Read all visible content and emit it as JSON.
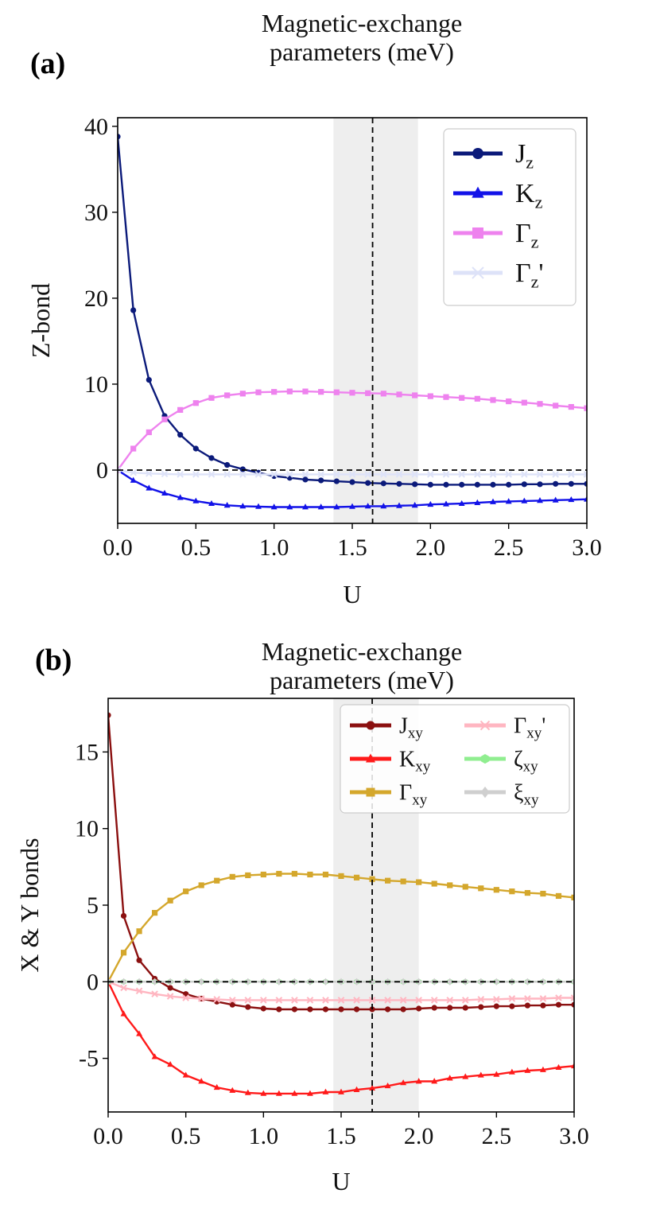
{
  "chart_data": [
    {
      "type": "line",
      "panel_label": "(a)",
      "title": [
        "Magnetic-exchange",
        "parameters (meV)"
      ],
      "xlabel": "U",
      "ylabel": "Z-bond",
      "xlim": [
        0.0,
        3.0
      ],
      "ylim": [
        -6.2,
        41.0
      ],
      "xticks": [
        "0.0",
        "0.5",
        "1.0",
        "1.5",
        "2.0",
        "2.5",
        "3.0"
      ],
      "yticks": [
        "0",
        "10",
        "20",
        "30",
        "40"
      ],
      "shaded_region": [
        1.38,
        1.92
      ],
      "vline": 1.63,
      "hline": 0,
      "legend_position": "top-right",
      "x": [
        0.0,
        0.1,
        0.2,
        0.3,
        0.4,
        0.5,
        0.6,
        0.7,
        0.8,
        0.9,
        1.0,
        1.1,
        1.2,
        1.3,
        1.4,
        1.5,
        1.6,
        1.7,
        1.8,
        1.9,
        2.0,
        2.1,
        2.2,
        2.3,
        2.4,
        2.5,
        2.6,
        2.7,
        2.8,
        2.9,
        3.0
      ],
      "series": [
        {
          "name": "J",
          "sub": "z",
          "prime": false,
          "color": "#0b1a7a",
          "marker": "circle",
          "values": [
            38.8,
            18.6,
            10.5,
            6.3,
            4.1,
            2.5,
            1.4,
            0.6,
            0.1,
            -0.3,
            -0.7,
            -0.9,
            -1.1,
            -1.2,
            -1.3,
            -1.4,
            -1.5,
            -1.55,
            -1.6,
            -1.65,
            -1.7,
            -1.7,
            -1.7,
            -1.7,
            -1.7,
            -1.7,
            -1.65,
            -1.65,
            -1.6,
            -1.6,
            -1.6
          ]
        },
        {
          "name": "K",
          "sub": "z",
          "prime": false,
          "color": "#1212e8",
          "marker": "triangle",
          "values": [
            0.0,
            -1.2,
            -2.1,
            -2.7,
            -3.2,
            -3.6,
            -3.9,
            -4.1,
            -4.2,
            -4.25,
            -4.3,
            -4.3,
            -4.3,
            -4.3,
            -4.3,
            -4.25,
            -4.2,
            -4.2,
            -4.15,
            -4.1,
            -4.0,
            -3.95,
            -3.9,
            -3.8,
            -3.7,
            -3.65,
            -3.6,
            -3.55,
            -3.5,
            -3.45,
            -3.4
          ]
        },
        {
          "name": "Γ",
          "sub": "z",
          "prime": false,
          "color": "#ee82ee",
          "marker": "square",
          "values": [
            0.0,
            2.5,
            4.4,
            5.9,
            7.0,
            7.8,
            8.4,
            8.7,
            8.9,
            9.05,
            9.1,
            9.15,
            9.15,
            9.1,
            9.05,
            9.0,
            8.95,
            8.9,
            8.8,
            8.7,
            8.6,
            8.5,
            8.4,
            8.3,
            8.15,
            8.0,
            7.85,
            7.7,
            7.5,
            7.35,
            7.2
          ]
        },
        {
          "name": "Γ",
          "sub": "z",
          "prime": true,
          "color": "#dde2f8",
          "marker": "x",
          "values": [
            0.0,
            -0.3,
            -0.4,
            -0.45,
            -0.5,
            -0.5,
            -0.5,
            -0.5,
            -0.5,
            -0.5,
            -0.5,
            -0.5,
            -0.5,
            -0.5,
            -0.5,
            -0.5,
            -0.5,
            -0.5,
            -0.5,
            -0.5,
            -0.5,
            -0.5,
            -0.5,
            -0.5,
            -0.5,
            -0.5,
            -0.5,
            -0.5,
            -0.5,
            -0.5,
            -0.5
          ]
        }
      ]
    },
    {
      "type": "line",
      "panel_label": "(b)",
      "title": [
        "Magnetic-exchange",
        "parameters (meV)"
      ],
      "xlabel": "U",
      "ylabel": "X & Y bonds",
      "xlim": [
        0.0,
        3.0
      ],
      "ylim": [
        -8.5,
        18.5
      ],
      "xticks": [
        "0.0",
        "0.5",
        "1.0",
        "1.5",
        "2.0",
        "2.5",
        "3.0"
      ],
      "yticks": [
        "-5",
        "0",
        "5",
        "10",
        "15"
      ],
      "shaded_region": [
        1.45,
        2.0
      ],
      "vline": 1.7,
      "hline": 0,
      "legend_position": "top-right",
      "x": [
        0.0,
        0.1,
        0.2,
        0.3,
        0.4,
        0.5,
        0.6,
        0.7,
        0.8,
        0.9,
        1.0,
        1.1,
        1.2,
        1.3,
        1.4,
        1.5,
        1.6,
        1.7,
        1.8,
        1.9,
        2.0,
        2.1,
        2.2,
        2.3,
        2.4,
        2.5,
        2.6,
        2.7,
        2.8,
        2.9,
        3.0
      ],
      "series": [
        {
          "name": "J",
          "sub": "xy",
          "prime": false,
          "color": "#8b1010",
          "marker": "circle",
          "values": [
            17.4,
            4.3,
            1.4,
            0.2,
            -0.4,
            -0.8,
            -1.1,
            -1.3,
            -1.5,
            -1.65,
            -1.75,
            -1.8,
            -1.8,
            -1.8,
            -1.8,
            -1.8,
            -1.8,
            -1.8,
            -1.8,
            -1.8,
            -1.75,
            -1.7,
            -1.7,
            -1.7,
            -1.65,
            -1.6,
            -1.6,
            -1.55,
            -1.55,
            -1.5,
            -1.5
          ]
        },
        {
          "name": "K",
          "sub": "xy",
          "prime": false,
          "color": "#ff1a1a",
          "marker": "triangle",
          "values": [
            0.0,
            -2.1,
            -3.4,
            -4.9,
            -5.4,
            -6.1,
            -6.5,
            -6.9,
            -7.1,
            -7.25,
            -7.3,
            -7.3,
            -7.3,
            -7.3,
            -7.2,
            -7.2,
            -7.05,
            -6.95,
            -6.8,
            -6.6,
            -6.5,
            -6.5,
            -6.3,
            -6.2,
            -6.1,
            -6.05,
            -5.9,
            -5.8,
            -5.75,
            -5.6,
            -5.5
          ]
        },
        {
          "name": "Γ",
          "sub": "xy",
          "prime": false,
          "color": "#d4a72c",
          "marker": "square",
          "values": [
            0.0,
            1.9,
            3.3,
            4.5,
            5.3,
            5.9,
            6.3,
            6.6,
            6.85,
            6.95,
            7.0,
            7.05,
            7.05,
            7.0,
            7.0,
            6.9,
            6.8,
            6.7,
            6.6,
            6.55,
            6.5,
            6.4,
            6.3,
            6.2,
            6.1,
            6.0,
            5.9,
            5.8,
            5.75,
            5.6,
            5.5
          ]
        },
        {
          "name": "Γ",
          "sub": "xy",
          "prime": true,
          "color": "#ffb6c1",
          "marker": "x",
          "values": [
            0.0,
            -0.4,
            -0.6,
            -0.8,
            -0.95,
            -1.05,
            -1.1,
            -1.15,
            -1.2,
            -1.2,
            -1.2,
            -1.2,
            -1.2,
            -1.2,
            -1.2,
            -1.2,
            -1.2,
            -1.2,
            -1.2,
            -1.2,
            -1.2,
            -1.2,
            -1.2,
            -1.2,
            -1.15,
            -1.15,
            -1.1,
            -1.1,
            -1.1,
            -1.05,
            -1.05
          ]
        },
        {
          "name": "ζ",
          "sub": "xy",
          "prime": false,
          "color": "#90ee90",
          "marker": "hexagon",
          "values": [
            0.0,
            0.0,
            0.0,
            0.0,
            0.0,
            0.0,
            0.0,
            0.0,
            0.0,
            0.0,
            0.0,
            0.0,
            0.0,
            0.0,
            0.0,
            0.0,
            0.0,
            0.0,
            0.0,
            0.0,
            0.0,
            0.0,
            0.0,
            0.0,
            0.0,
            0.0,
            0.0,
            0.0,
            0.0,
            0.0,
            0.0
          ]
        },
        {
          "name": "ξ",
          "sub": "xy",
          "prime": false,
          "color": "#cfcfcf",
          "marker": "diamond",
          "values": [
            0.0,
            0.0,
            0.0,
            0.0,
            0.0,
            0.0,
            0.0,
            0.0,
            0.0,
            0.0,
            0.0,
            0.0,
            0.0,
            0.0,
            0.0,
            0.0,
            0.0,
            0.0,
            0.0,
            0.0,
            0.0,
            0.0,
            0.0,
            0.0,
            0.0,
            0.0,
            0.0,
            0.0,
            0.0,
            0.0,
            0.0
          ]
        }
      ]
    }
  ]
}
